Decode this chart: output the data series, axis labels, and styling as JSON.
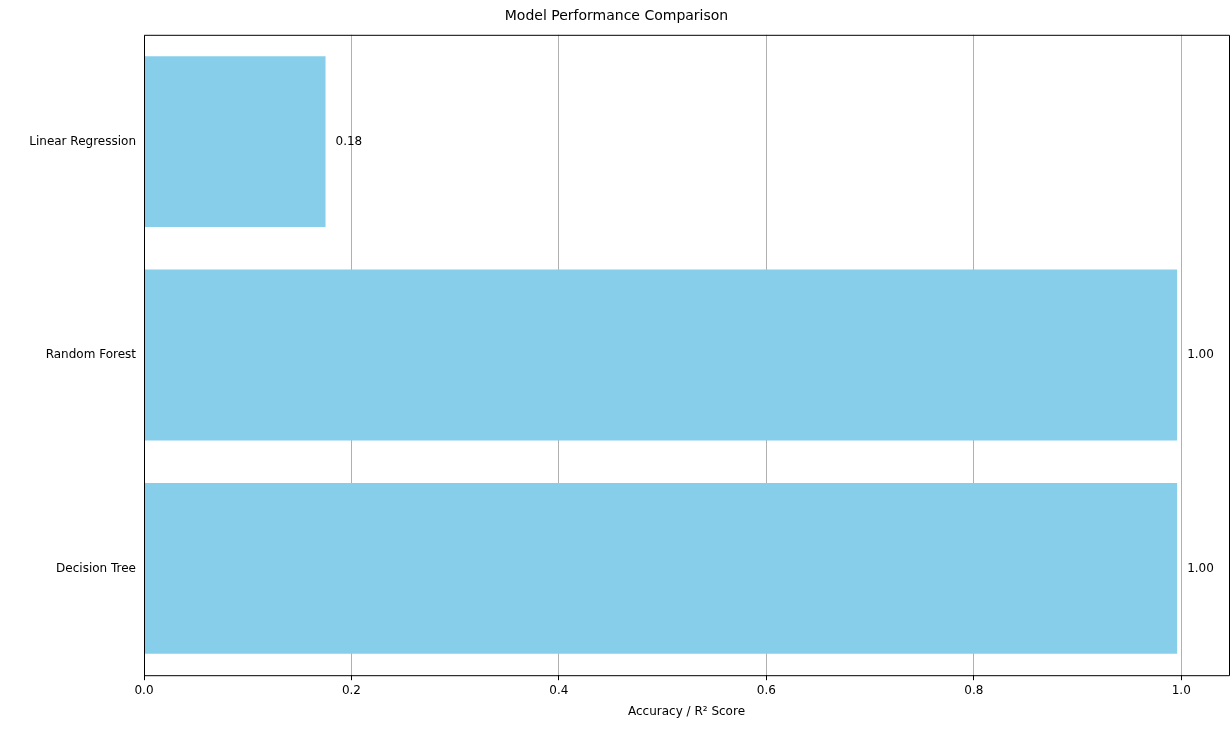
{
  "chart_data": {
    "type": "bar",
    "orientation": "horizontal",
    "title": "Model Performance Comparison",
    "xlabel": "Accuracy / R² Score",
    "categories": [
      "Linear Regression",
      "Random Forest",
      "Decision Tree"
    ],
    "values": [
      0.175,
      0.996,
      0.996
    ],
    "value_labels": [
      "0.18",
      "1.00",
      "1.00"
    ],
    "color": "#87ceeb",
    "xlim": [
      0,
      1.046
    ],
    "xticks": [
      {
        "value": 0,
        "label": "0.0"
      },
      {
        "value": 0.2,
        "label": "0.2"
      },
      {
        "value": 0.4,
        "label": "0.4"
      },
      {
        "value": 0.6,
        "label": "0.6"
      },
      {
        "value": 0.8,
        "label": "0.8"
      },
      {
        "value": 1,
        "label": "1.0"
      }
    ],
    "grid": "x"
  }
}
